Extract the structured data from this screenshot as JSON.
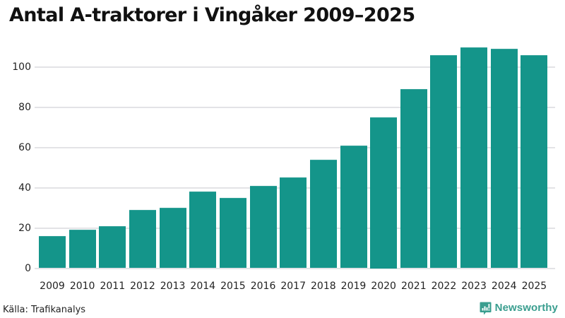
{
  "title": "Antal A-traktorer i Vingåker 2009–2025",
  "source": "Källa: Trafikanalys",
  "brand": {
    "name": "Newsworthy",
    "icon": "bar-chart-speech-bubble-icon",
    "color": "#3a9e8f"
  },
  "colors": {
    "bar": "#14958a",
    "gridline": "#e3e3e6"
  },
  "y_axis": {
    "ticks": [
      "0",
      "20",
      "40",
      "60",
      "80",
      "100"
    ]
  },
  "x_axis": {
    "ticks": [
      "2009",
      "2010",
      "2011",
      "2012",
      "2013",
      "2014",
      "2015",
      "2016",
      "2017",
      "2018",
      "2019",
      "2020",
      "2021",
      "2022",
      "2023",
      "2024",
      "2025"
    ]
  },
  "chart_data": {
    "type": "bar",
    "title": "Antal A-traktorer i Vingåker 2009–2025",
    "categories": [
      "2009",
      "2010",
      "2011",
      "2012",
      "2013",
      "2014",
      "2015",
      "2016",
      "2017",
      "2018",
      "2019",
      "2020",
      "2021",
      "2022",
      "2023",
      "2024",
      "2025"
    ],
    "values": [
      16,
      19,
      21,
      29,
      30,
      38,
      35,
      41,
      45,
      54,
      61,
      75,
      89,
      106,
      110,
      109,
      106
    ],
    "xlabel": "",
    "ylabel": "",
    "ylim": [
      0,
      115
    ],
    "yticks": [
      0,
      20,
      40,
      60,
      80,
      100
    ],
    "grid": true,
    "legend": null,
    "source": "Källa: Trafikanalys"
  }
}
